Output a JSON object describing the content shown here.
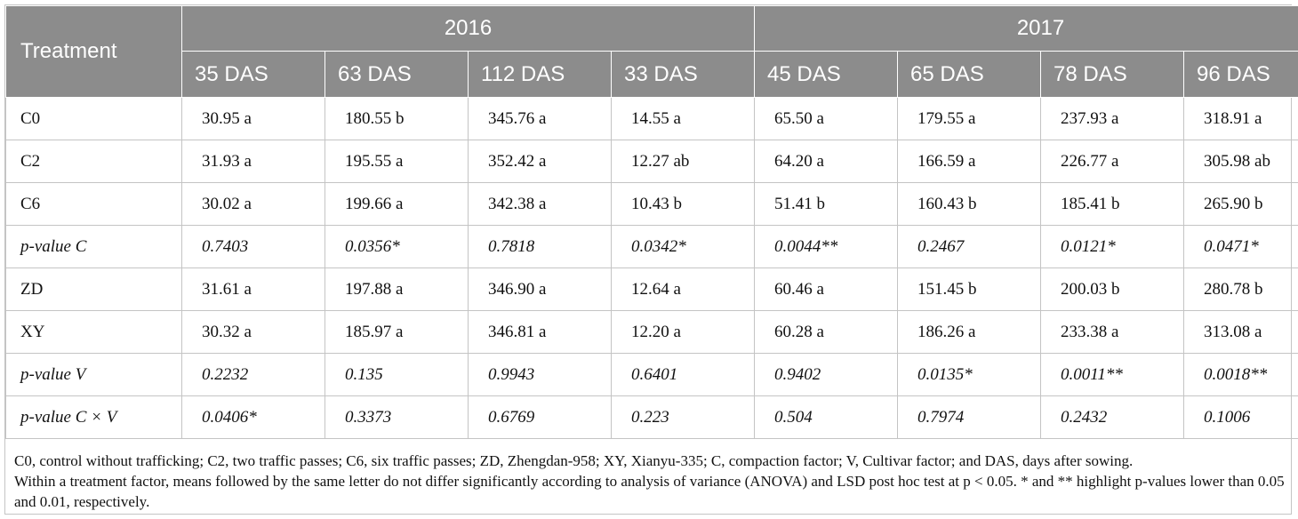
{
  "header": {
    "treatment_label": "Treatment",
    "years": [
      "2016",
      "2017"
    ],
    "columns": [
      "35 DAS",
      "63 DAS",
      "112 DAS",
      "33 DAS",
      "45 DAS",
      "65 DAS",
      "78 DAS",
      "96 DAS"
    ]
  },
  "rows": [
    {
      "label": "C0",
      "p": false,
      "values": [
        "30.95 a",
        "180.55 b",
        "345.76 a",
        "14.55 a",
        "65.50 a",
        "179.55 a",
        "237.93 a",
        "318.91 a"
      ]
    },
    {
      "label": "C2",
      "p": false,
      "values": [
        "31.93 a",
        "195.55 a",
        "352.42 a",
        "12.27 ab",
        "64.20 a",
        "166.59 a",
        "226.77 a",
        "305.98 ab"
      ]
    },
    {
      "label": "C6",
      "p": false,
      "values": [
        "30.02 a",
        "199.66 a",
        "342.38 a",
        "10.43 b",
        "51.41 b",
        "160.43 b",
        "185.41 b",
        "265.90 b"
      ]
    },
    {
      "label": "p-value C",
      "p": true,
      "values": [
        "0.7403",
        "0.0356*",
        "0.7818",
        "0.0342*",
        "0.0044**",
        "0.2467",
        "0.0121*",
        "0.0471*"
      ]
    },
    {
      "label": "ZD",
      "p": false,
      "values": [
        "31.61 a",
        "197.88 a",
        "346.90 a",
        "12.64 a",
        "60.46 a",
        "151.45 b",
        "200.03 b",
        "280.78 b"
      ]
    },
    {
      "label": "XY",
      "p": false,
      "values": [
        "30.32 a",
        "185.97 a",
        "346.81 a",
        "12.20 a",
        "60.28 a",
        "186.26 a",
        "233.38 a",
        "313.08 a"
      ]
    },
    {
      "label": "p-value V",
      "p": true,
      "values": [
        "0.2232",
        "0.135",
        "0.9943",
        "0.6401",
        "0.9402",
        "0.0135*",
        "0.0011**",
        "0.0018**"
      ]
    },
    {
      "label": "p-value C × V",
      "p": true,
      "values": [
        "0.0406*",
        "0.3373",
        "0.6769",
        "0.223",
        "0.504",
        "0.7974",
        "0.2432",
        "0.1006"
      ]
    }
  ],
  "footnote": {
    "line1": "C0, control without trafficking; C2, two traffic passes; C6, six traffic passes; ZD, Zhengdan-958; XY, Xianyu-335; C, compaction factor; V, Cultivar factor; and DAS, days after sowing.",
    "line2": "Within a treatment factor, means followed by the same letter do not differ significantly according to analysis of variance (ANOVA) and LSD post hoc test at p < 0.05. * and ** highlight p-values lower than 0.05 and 0.01, respectively."
  }
}
